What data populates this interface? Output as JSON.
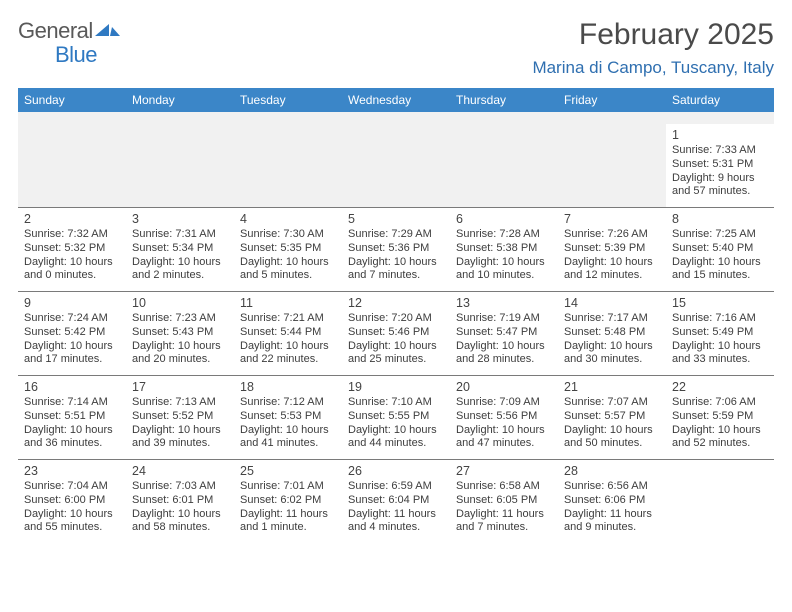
{
  "brand": {
    "part1": "General",
    "part2": "Blue"
  },
  "title": "February 2025",
  "location": "Marina di Campo, Tuscany, Italy",
  "colors": {
    "header_bg": "#3b86c8",
    "header_text": "#ffffff",
    "location_text": "#2f6fb0",
    "title_text": "#4a4a4a",
    "spacer_bg": "#f1f1f1",
    "border": "#7a7a7a",
    "body_text": "#3d3d3d"
  },
  "typography": {
    "title_fontsize": 30,
    "location_fontsize": 17,
    "weekday_fontsize": 12,
    "daynum_fontsize": 12.5,
    "body_fontsize": 11
  },
  "weekdays": [
    "Sunday",
    "Monday",
    "Tuesday",
    "Wednesday",
    "Thursday",
    "Friday",
    "Saturday"
  ],
  "weeks": [
    [
      null,
      null,
      null,
      null,
      null,
      null,
      {
        "n": "1",
        "sunrise": "Sunrise: 7:33 AM",
        "sunset": "Sunset: 5:31 PM",
        "day1": "Daylight: 9 hours",
        "day2": "and 57 minutes."
      }
    ],
    [
      {
        "n": "2",
        "sunrise": "Sunrise: 7:32 AM",
        "sunset": "Sunset: 5:32 PM",
        "day1": "Daylight: 10 hours",
        "day2": "and 0 minutes."
      },
      {
        "n": "3",
        "sunrise": "Sunrise: 7:31 AM",
        "sunset": "Sunset: 5:34 PM",
        "day1": "Daylight: 10 hours",
        "day2": "and 2 minutes."
      },
      {
        "n": "4",
        "sunrise": "Sunrise: 7:30 AM",
        "sunset": "Sunset: 5:35 PM",
        "day1": "Daylight: 10 hours",
        "day2": "and 5 minutes."
      },
      {
        "n": "5",
        "sunrise": "Sunrise: 7:29 AM",
        "sunset": "Sunset: 5:36 PM",
        "day1": "Daylight: 10 hours",
        "day2": "and 7 minutes."
      },
      {
        "n": "6",
        "sunrise": "Sunrise: 7:28 AM",
        "sunset": "Sunset: 5:38 PM",
        "day1": "Daylight: 10 hours",
        "day2": "and 10 minutes."
      },
      {
        "n": "7",
        "sunrise": "Sunrise: 7:26 AM",
        "sunset": "Sunset: 5:39 PM",
        "day1": "Daylight: 10 hours",
        "day2": "and 12 minutes."
      },
      {
        "n": "8",
        "sunrise": "Sunrise: 7:25 AM",
        "sunset": "Sunset: 5:40 PM",
        "day1": "Daylight: 10 hours",
        "day2": "and 15 minutes."
      }
    ],
    [
      {
        "n": "9",
        "sunrise": "Sunrise: 7:24 AM",
        "sunset": "Sunset: 5:42 PM",
        "day1": "Daylight: 10 hours",
        "day2": "and 17 minutes."
      },
      {
        "n": "10",
        "sunrise": "Sunrise: 7:23 AM",
        "sunset": "Sunset: 5:43 PM",
        "day1": "Daylight: 10 hours",
        "day2": "and 20 minutes."
      },
      {
        "n": "11",
        "sunrise": "Sunrise: 7:21 AM",
        "sunset": "Sunset: 5:44 PM",
        "day1": "Daylight: 10 hours",
        "day2": "and 22 minutes."
      },
      {
        "n": "12",
        "sunrise": "Sunrise: 7:20 AM",
        "sunset": "Sunset: 5:46 PM",
        "day1": "Daylight: 10 hours",
        "day2": "and 25 minutes."
      },
      {
        "n": "13",
        "sunrise": "Sunrise: 7:19 AM",
        "sunset": "Sunset: 5:47 PM",
        "day1": "Daylight: 10 hours",
        "day2": "and 28 minutes."
      },
      {
        "n": "14",
        "sunrise": "Sunrise: 7:17 AM",
        "sunset": "Sunset: 5:48 PM",
        "day1": "Daylight: 10 hours",
        "day2": "and 30 minutes."
      },
      {
        "n": "15",
        "sunrise": "Sunrise: 7:16 AM",
        "sunset": "Sunset: 5:49 PM",
        "day1": "Daylight: 10 hours",
        "day2": "and 33 minutes."
      }
    ],
    [
      {
        "n": "16",
        "sunrise": "Sunrise: 7:14 AM",
        "sunset": "Sunset: 5:51 PM",
        "day1": "Daylight: 10 hours",
        "day2": "and 36 minutes."
      },
      {
        "n": "17",
        "sunrise": "Sunrise: 7:13 AM",
        "sunset": "Sunset: 5:52 PM",
        "day1": "Daylight: 10 hours",
        "day2": "and 39 minutes."
      },
      {
        "n": "18",
        "sunrise": "Sunrise: 7:12 AM",
        "sunset": "Sunset: 5:53 PM",
        "day1": "Daylight: 10 hours",
        "day2": "and 41 minutes."
      },
      {
        "n": "19",
        "sunrise": "Sunrise: 7:10 AM",
        "sunset": "Sunset: 5:55 PM",
        "day1": "Daylight: 10 hours",
        "day2": "and 44 minutes."
      },
      {
        "n": "20",
        "sunrise": "Sunrise: 7:09 AM",
        "sunset": "Sunset: 5:56 PM",
        "day1": "Daylight: 10 hours",
        "day2": "and 47 minutes."
      },
      {
        "n": "21",
        "sunrise": "Sunrise: 7:07 AM",
        "sunset": "Sunset: 5:57 PM",
        "day1": "Daylight: 10 hours",
        "day2": "and 50 minutes."
      },
      {
        "n": "22",
        "sunrise": "Sunrise: 7:06 AM",
        "sunset": "Sunset: 5:59 PM",
        "day1": "Daylight: 10 hours",
        "day2": "and 52 minutes."
      }
    ],
    [
      {
        "n": "23",
        "sunrise": "Sunrise: 7:04 AM",
        "sunset": "Sunset: 6:00 PM",
        "day1": "Daylight: 10 hours",
        "day2": "and 55 minutes."
      },
      {
        "n": "24",
        "sunrise": "Sunrise: 7:03 AM",
        "sunset": "Sunset: 6:01 PM",
        "day1": "Daylight: 10 hours",
        "day2": "and 58 minutes."
      },
      {
        "n": "25",
        "sunrise": "Sunrise: 7:01 AM",
        "sunset": "Sunset: 6:02 PM",
        "day1": "Daylight: 11 hours",
        "day2": "and 1 minute."
      },
      {
        "n": "26",
        "sunrise": "Sunrise: 6:59 AM",
        "sunset": "Sunset: 6:04 PM",
        "day1": "Daylight: 11 hours",
        "day2": "and 4 minutes."
      },
      {
        "n": "27",
        "sunrise": "Sunrise: 6:58 AM",
        "sunset": "Sunset: 6:05 PM",
        "day1": "Daylight: 11 hours",
        "day2": "and 7 minutes."
      },
      {
        "n": "28",
        "sunrise": "Sunrise: 6:56 AM",
        "sunset": "Sunset: 6:06 PM",
        "day1": "Daylight: 11 hours",
        "day2": "and 9 minutes."
      },
      null
    ]
  ]
}
